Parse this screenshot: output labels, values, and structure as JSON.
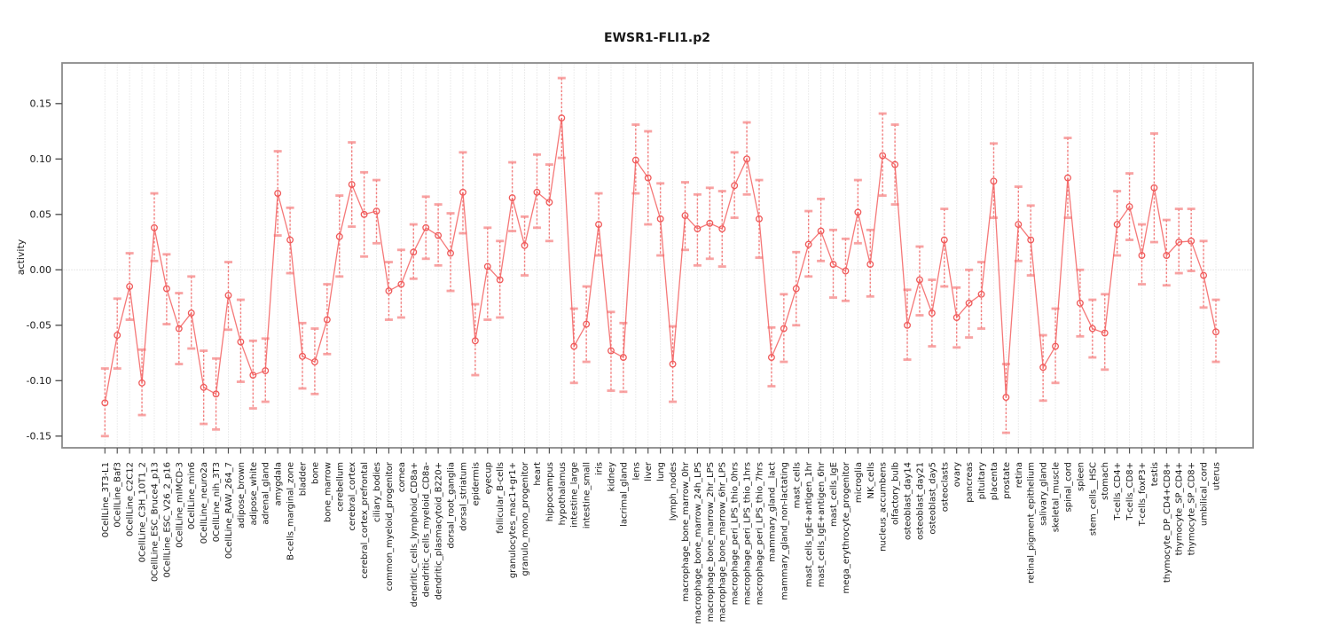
{
  "title": "EWSR1-FLI1.p2",
  "colors": {
    "line": "rgba(243,96,96,0.85)",
    "point_stroke": "#ef5a5a",
    "errorbar_stem": "rgba(242,90,90,0.75)",
    "errorbar_cap": "rgba(246,140,140,0.80)",
    "gridline": "#dadada",
    "zero_line": "#d0d0d0",
    "axis_box": "#8a8a8a",
    "tick": "#555555",
    "text": "#1a1a1a"
  },
  "chart_data": {
    "type": "line",
    "title": "EWSR1-FLI1.p2",
    "xlabel": "",
    "ylabel": "activity",
    "ylim": [
      -0.16,
      0.187
    ],
    "yticks": [
      0.15,
      0.1,
      0.05,
      0.0,
      -0.05,
      -0.1,
      -0.15
    ],
    "ytick_labels": [
      "0.15",
      "0.10",
      "0.05",
      "0.00",
      "-0.05",
      "-0.10",
      "-0.15"
    ],
    "grid": "vertical dotted gridline at every category; dotted horizontal line at y=0",
    "legend": "none",
    "point_style": "open circles with dotted error-bar stems and solid caps",
    "categories": [
      "0CellLine_3T3-L1",
      "0CellLine_Baf3",
      "0CellLine_C2C12",
      "0CellLine_C3H_10T1_2",
      "0CellLine_ESC_Bruce4_p13",
      "0CellLine_ESC_V26_2_p16",
      "0CellLine_mIMCD-3",
      "0CellLine_min6",
      "0CellLine_neuro2a",
      "0CellLine_nih_3T3",
      "0CellLine_RAW_264_7",
      "adipose_brown",
      "adipose_white",
      "adrenal_gland",
      "amygdala",
      "B-cells_marginal_zone",
      "bladder",
      "bone",
      "bone_marrow",
      "cerebellum",
      "cerebral_cortex",
      "cerebral_cortex_prefrontal",
      "ciliary_bodies",
      "common_myeloid_progenitor",
      "cornea",
      "dendritic_cells_lymphoid_CD8a+",
      "dendritic_cells_myeloid_CD8a-",
      "dendritic_plasmacytoid_B220+",
      "dorsal_root_ganglia",
      "dorsal_striatum",
      "epidermis",
      "eyecup",
      "follicular_B-cells",
      "granulocytes_mac1+gr1+",
      "granulo_mono_progenitor",
      "heart",
      "hippocampus",
      "hypothalamus",
      "intestine_large",
      "intestine_small",
      "iris",
      "kidney",
      "lacrimal_gland",
      "lens",
      "liver",
      "lung",
      "lymph_nodes",
      "macrophage_bone_marrow_0hr",
      "macrophage_bone_marrow_24h_LPS",
      "macrophage_bone_marrow_2hr_LPS",
      "macrophage_bone_marrow_6hr_LPS",
      "macrophage_peri_LPS_thio_0hrs",
      "macrophage_peri_LPS_thio_1hrs",
      "macrophage_peri_LPS_thio_7hrs",
      "mammary_gland__lact",
      "mammary_gland_non-lactating",
      "mast_cells",
      "mast_cells_IgE+antigen_1hr",
      "mast_cells_IgE+antigen_6hr",
      "mast_cells_IgE",
      "mega_erythrocyte_progenitor",
      "microglia",
      "NK_cells",
      "nucleus_accumbens",
      "olfactory_bulb",
      "osteoblast_day14",
      "osteoblast_day21",
      "osteoblast_day5",
      "osteoclasts",
      "ovary",
      "pancreas",
      "pituitary",
      "placenta",
      "prostate",
      "retina",
      "retinal_pigment_epithelium",
      "salivary_gland",
      "skeletal_muscle",
      "spinal_cord",
      "spleen",
      "stem_cells__HSC",
      "stomach",
      "T-cells_CD4+",
      "T-cells_CD8+",
      "T-cells_foxP3+",
      "testis",
      "thymocyte_DP_CD4+CD8+",
      "thymocyte_SP_CD4+",
      "thymocyte_SP_CD8+",
      "umbilical_cord",
      "uterus"
    ],
    "series": [
      {
        "name": "activity",
        "values": [
          -0.12,
          -0.059,
          -0.015,
          -0.102,
          0.038,
          -0.017,
          -0.053,
          -0.039,
          -0.106,
          -0.112,
          -0.023,
          -0.065,
          -0.095,
          -0.091,
          0.069,
          0.027,
          -0.078,
          -0.083,
          -0.045,
          0.03,
          0.077,
          0.05,
          0.053,
          -0.019,
          -0.013,
          0.016,
          0.038,
          0.031,
          0.015,
          0.07,
          -0.064,
          0.003,
          -0.009,
          0.065,
          0.022,
          0.07,
          0.061,
          0.137,
          -0.069,
          -0.049,
          0.041,
          -0.073,
          -0.079,
          0.099,
          0.083,
          0.046,
          -0.085,
          0.049,
          0.037,
          0.042,
          0.037,
          0.076,
          0.1,
          0.046,
          -0.079,
          -0.053,
          -0.017,
          0.023,
          0.035,
          0.005,
          -0.001,
          0.052,
          0.005,
          0.103,
          0.095,
          -0.05,
          -0.009,
          -0.039,
          0.027,
          -0.043,
          -0.03,
          -0.022,
          0.08,
          -0.115,
          0.041,
          0.027,
          -0.088,
          -0.069,
          0.083,
          -0.03,
          -0.053,
          -0.057,
          0.041,
          0.057,
          0.013,
          0.074,
          0.013,
          0.025,
          0.026,
          -0.005,
          -0.056
        ],
        "ci_low": [
          -0.15,
          -0.089,
          -0.045,
          -0.131,
          0.008,
          -0.049,
          -0.085,
          -0.071,
          -0.139,
          -0.144,
          -0.054,
          -0.101,
          -0.125,
          -0.119,
          0.031,
          -0.003,
          -0.107,
          -0.112,
          -0.076,
          -0.006,
          0.039,
          0.012,
          0.024,
          -0.045,
          -0.043,
          -0.008,
          0.01,
          0.004,
          -0.019,
          0.033,
          -0.095,
          -0.045,
          -0.043,
          0.035,
          -0.005,
          0.038,
          0.026,
          0.101,
          -0.102,
          -0.083,
          0.013,
          -0.109,
          -0.11,
          0.069,
          0.041,
          0.013,
          -0.119,
          0.018,
          0.004,
          0.01,
          0.003,
          0.047,
          0.068,
          0.011,
          -0.105,
          -0.083,
          -0.05,
          -0.006,
          0.008,
          -0.025,
          -0.028,
          0.024,
          -0.024,
          0.067,
          0.059,
          -0.081,
          -0.041,
          -0.069,
          -0.015,
          -0.07,
          -0.061,
          -0.053,
          0.047,
          -0.147,
          0.008,
          -0.005,
          -0.118,
          -0.102,
          0.047,
          -0.06,
          -0.079,
          -0.09,
          0.013,
          0.027,
          -0.013,
          0.025,
          -0.014,
          -0.003,
          -0.001,
          -0.034,
          -0.083
        ],
        "ci_high": [
          -0.089,
          -0.026,
          0.015,
          -0.072,
          0.069,
          0.014,
          -0.021,
          -0.006,
          -0.073,
          -0.08,
          0.007,
          -0.027,
          -0.064,
          -0.062,
          0.107,
          0.056,
          -0.048,
          -0.053,
          -0.013,
          0.067,
          0.115,
          0.088,
          0.081,
          0.007,
          0.018,
          0.041,
          0.066,
          0.059,
          0.051,
          0.106,
          -0.031,
          0.038,
          0.026,
          0.097,
          0.048,
          0.104,
          0.095,
          0.173,
          -0.035,
          -0.015,
          0.069,
          -0.038,
          -0.048,
          0.131,
          0.125,
          0.078,
          -0.051,
          0.079,
          0.068,
          0.074,
          0.071,
          0.106,
          0.133,
          0.081,
          -0.052,
          -0.022,
          0.016,
          0.053,
          0.064,
          0.036,
          0.028,
          0.081,
          0.036,
          0.141,
          0.131,
          -0.018,
          0.021,
          -0.009,
          0.055,
          -0.016,
          0.0,
          0.007,
          0.114,
          -0.085,
          0.075,
          0.058,
          -0.059,
          -0.035,
          0.119,
          0.0,
          -0.027,
          -0.022,
          0.071,
          0.087,
          0.041,
          0.123,
          0.045,
          0.055,
          0.055,
          0.026,
          -0.027
        ]
      }
    ]
  }
}
